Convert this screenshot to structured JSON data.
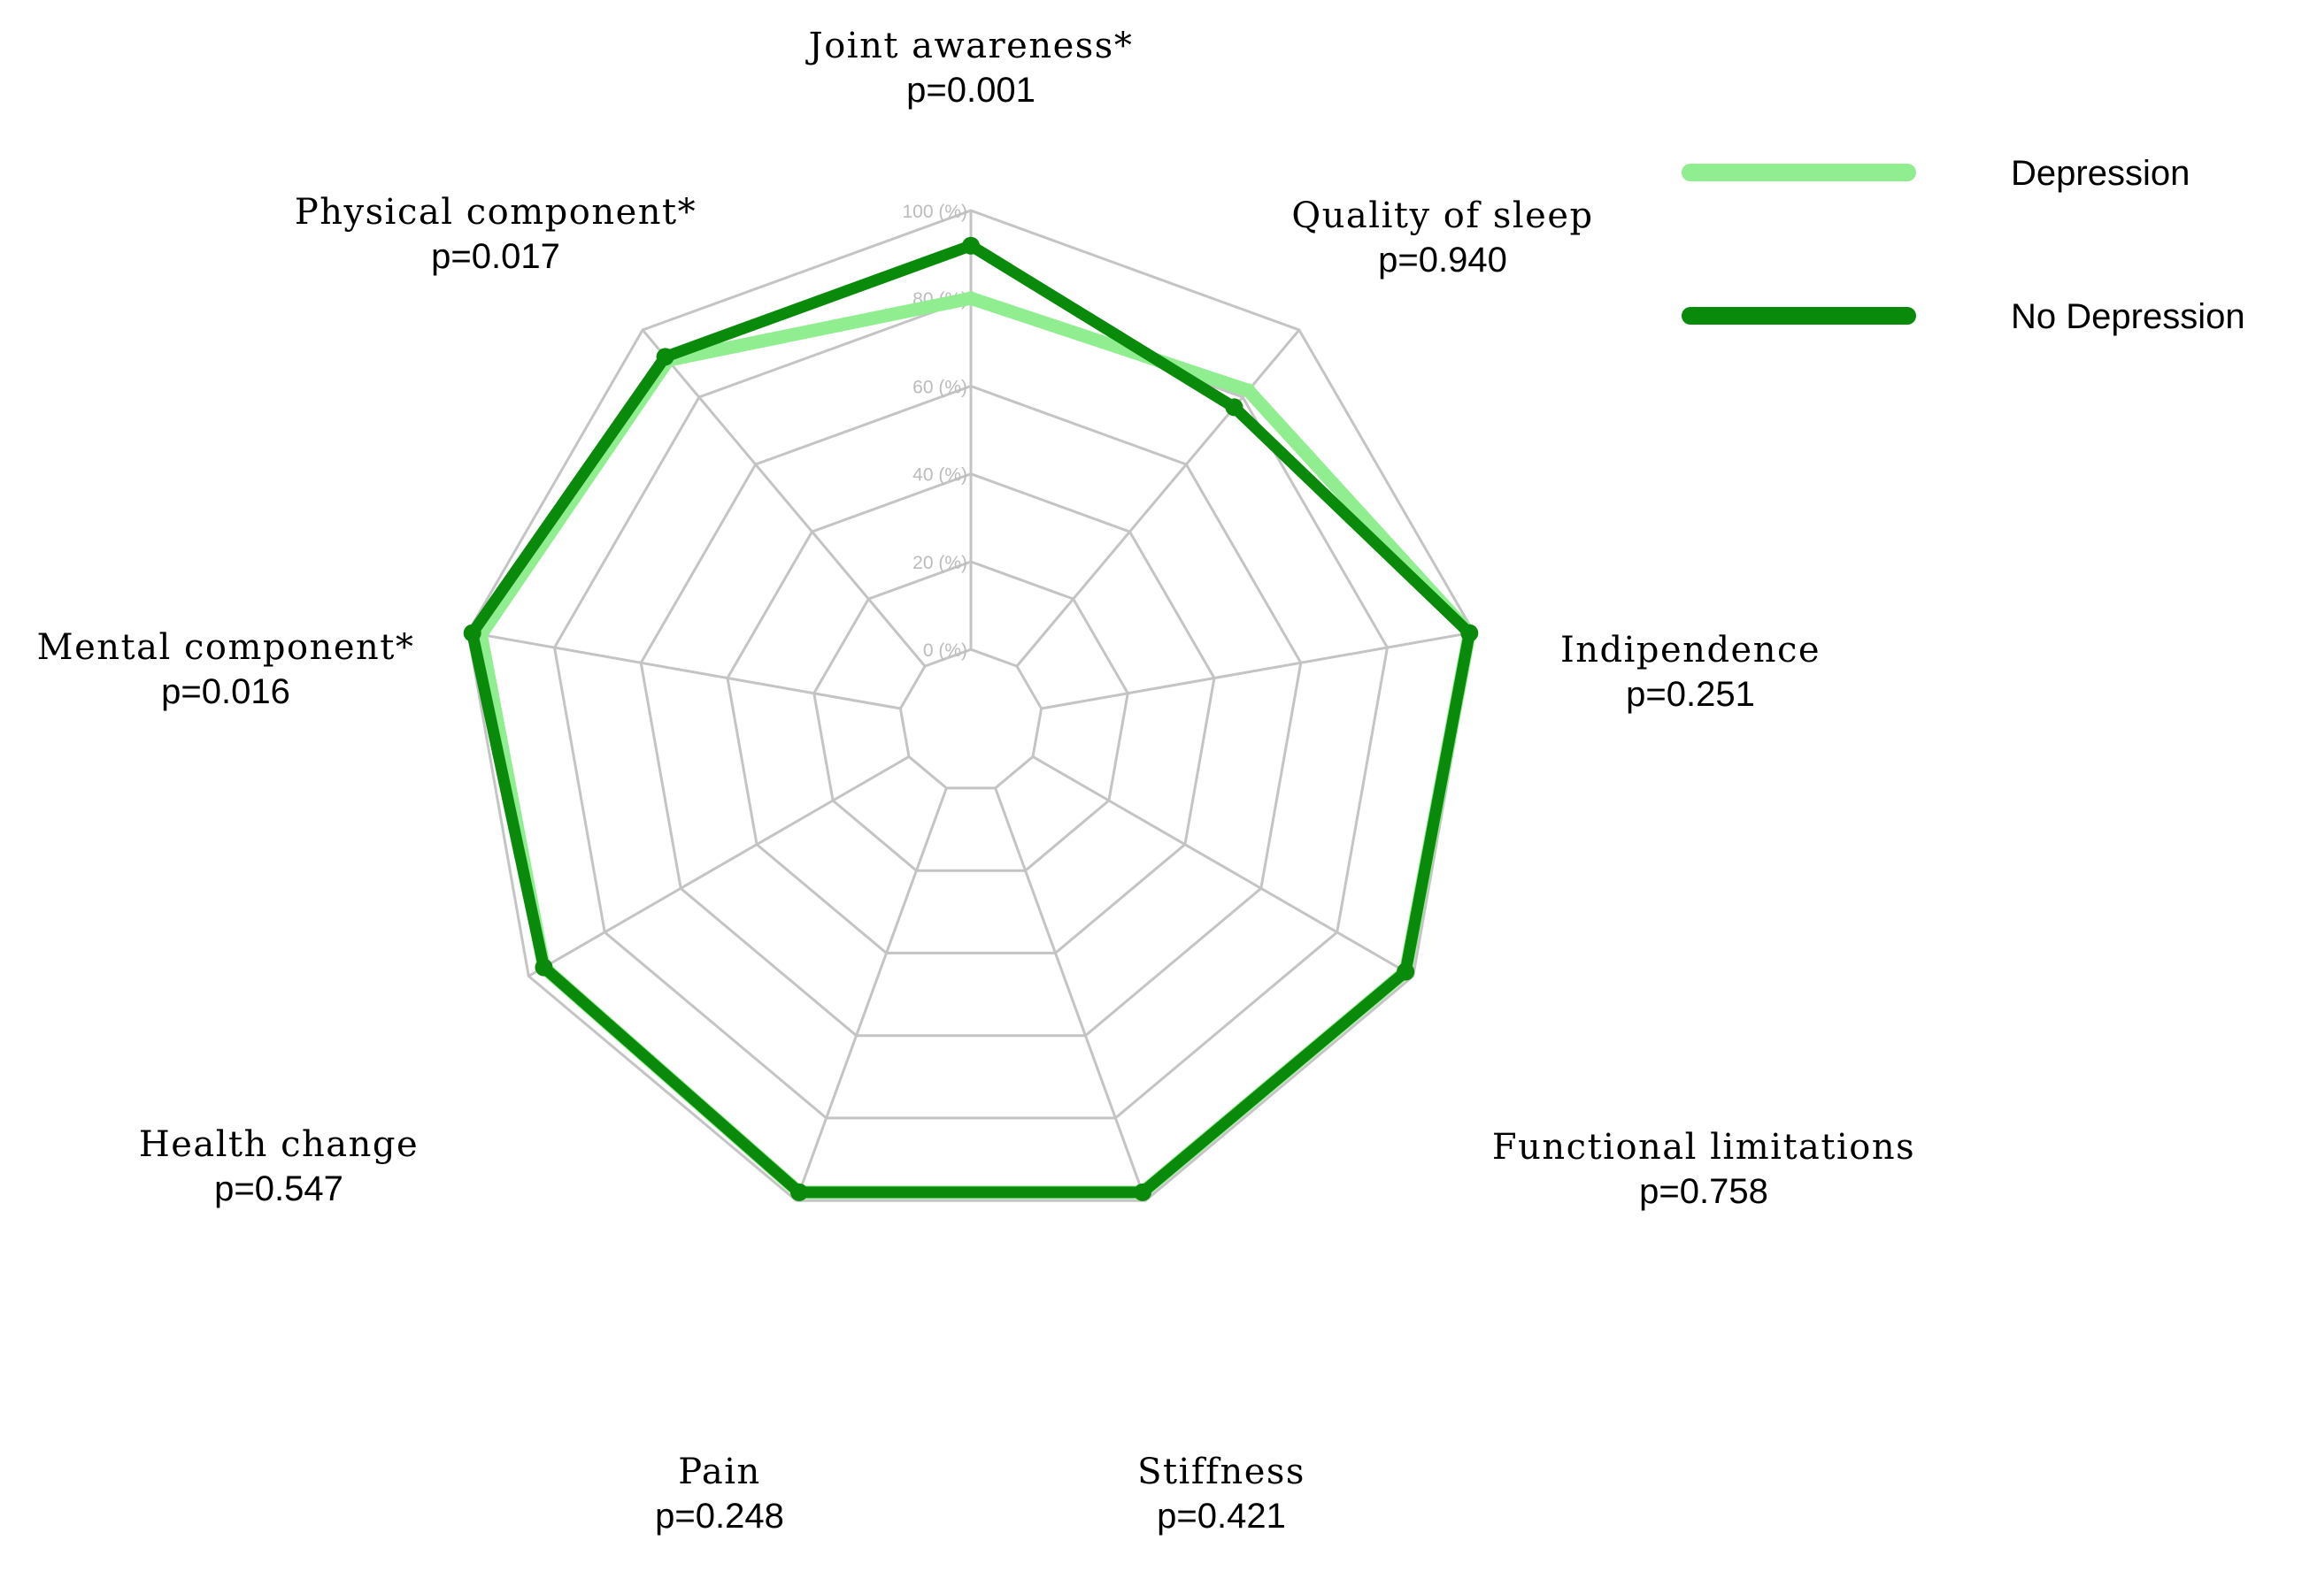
{
  "chart_data": {
    "type": "radar",
    "title": "",
    "rlim": [
      0,
      100
    ],
    "ticks": [
      "0 (%)",
      "20 (%)",
      "40 (%)",
      "60 (%)",
      "80 (%)",
      "100 (%)"
    ],
    "tick_values": [
      0,
      20,
      40,
      60,
      80,
      100
    ],
    "grid": true,
    "legend_position": "top-right",
    "axes": [
      {
        "name": "Joint awareness*",
        "p": "p=0.001"
      },
      {
        "name": "Quality of sleep",
        "p": "p=0.940"
      },
      {
        "name": "Indipendence",
        "p": "p=0.251"
      },
      {
        "name": "Functional limitations",
        "p": "p=0.758"
      },
      {
        "name": "Stiffness",
        "p": "p=0.421"
      },
      {
        "name": "Pain",
        "p": "p=0.248"
      },
      {
        "name": "Health change",
        "p": "p=0.547"
      },
      {
        "name": "Mental component*",
        "p": "p=0.016"
      },
      {
        "name": "Physical component*",
        "p": "p=0.017"
      }
    ],
    "series": [
      {
        "name": "Depression",
        "color": "#90ee90",
        "values": [
          80,
          82,
          99,
          98,
          98,
          98,
          96,
          97,
          91
        ]
      },
      {
        "name": "No Depression",
        "color": "#0a8a0a",
        "values": [
          92,
          77,
          99,
          98,
          98,
          98,
          96,
          99,
          92
        ]
      }
    ]
  }
}
